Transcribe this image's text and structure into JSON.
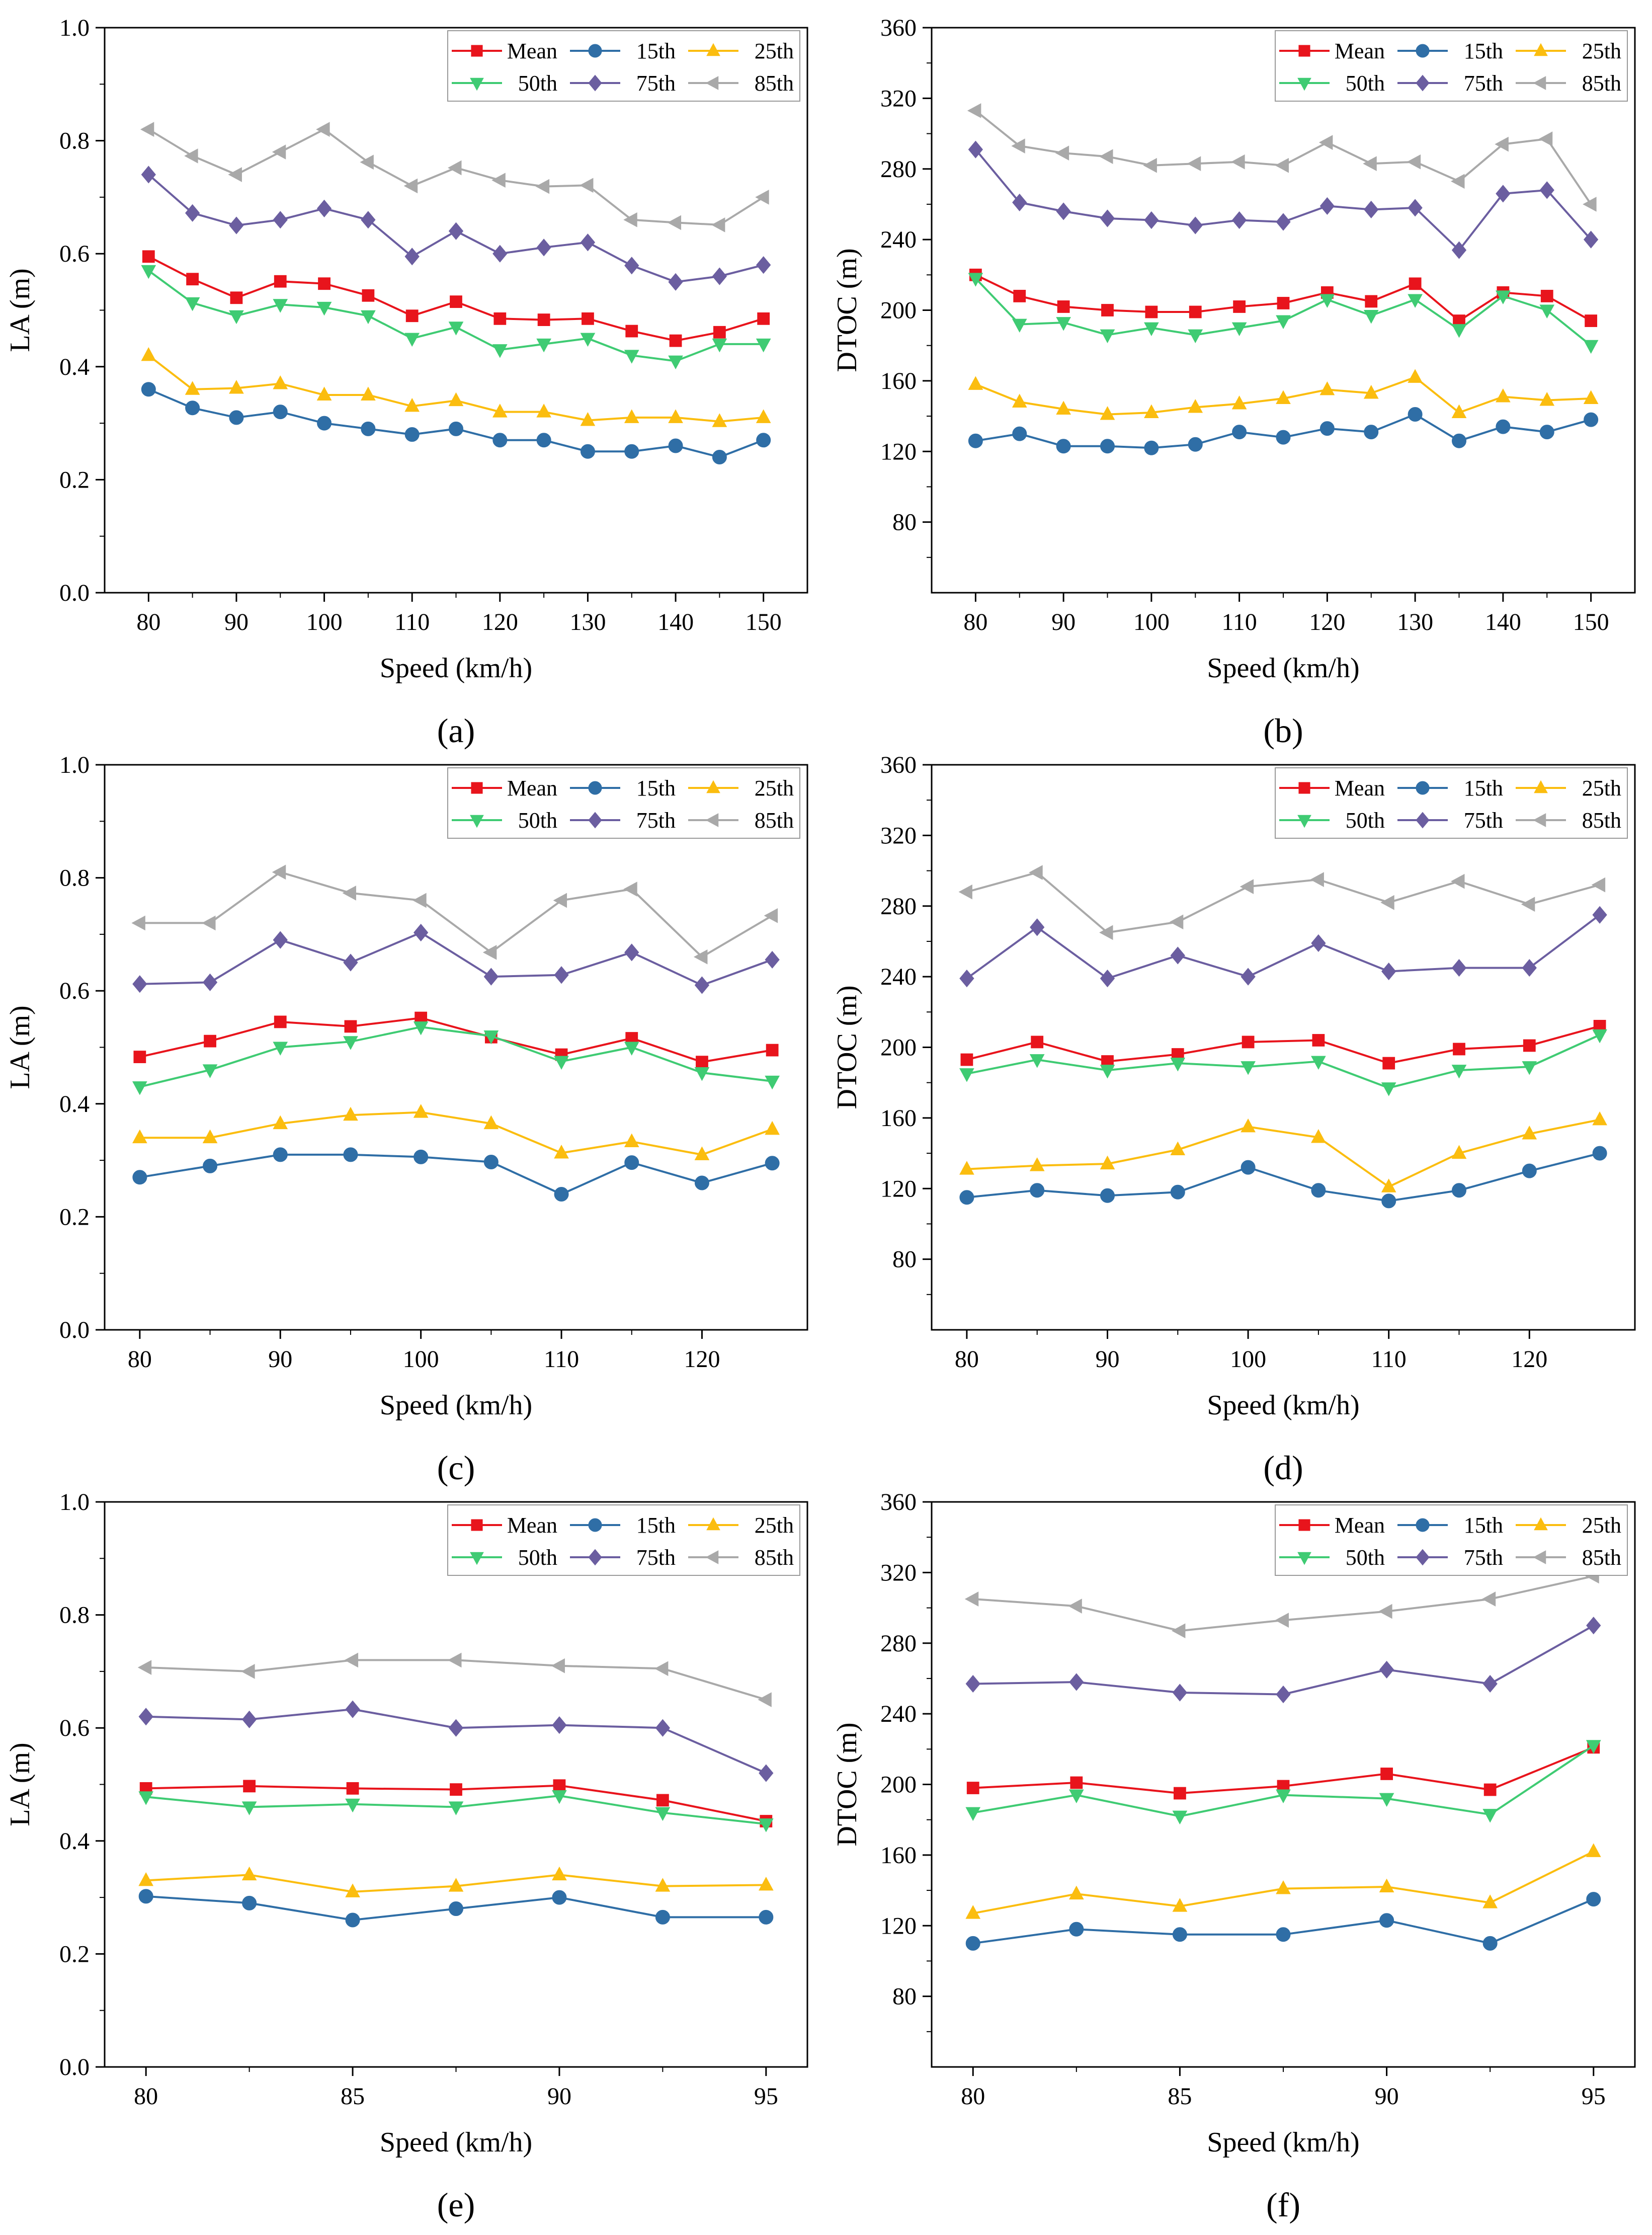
{
  "series_style": {
    "Mean": {
      "color": "#e8141c",
      "marker": "square"
    },
    "15th": {
      "color": "#2f6ea6",
      "marker": "circle"
    },
    "25th": {
      "color": "#fbbd0f",
      "marker": "triangle-up"
    },
    "50th": {
      "color": "#3fcb73",
      "marker": "triangle-down"
    },
    "75th": {
      "color": "#6b5ea0",
      "marker": "diamond"
    },
    "85th": {
      "color": "#a9a9a9",
      "marker": "triangle-left"
    }
  },
  "chart_data": [
    {
      "panel": "a",
      "panel_label": "(a)",
      "type": "line",
      "xlabel": "Speed (km/h)",
      "ylabel": "LA (m)",
      "xlim": [
        75,
        155
      ],
      "ylim": [
        0.0,
        1.0
      ],
      "xticks": [
        80,
        90,
        100,
        110,
        120,
        130,
        140,
        150
      ],
      "xtick_labels": [
        "80",
        "90",
        "100",
        "110",
        "120",
        "130",
        "140",
        "150"
      ],
      "yticks": [
        0.0,
        0.2,
        0.4,
        0.6,
        0.8,
        1.0
      ],
      "ytick_labels": [
        "0.0",
        "0.2",
        "0.4",
        "0.6",
        "0.8",
        "1.0"
      ],
      "x": [
        80,
        85,
        90,
        95,
        100,
        105,
        110,
        115,
        120,
        125,
        130,
        135,
        140,
        145,
        150
      ],
      "series": [
        {
          "name": "Mean",
          "values": [
            0.595,
            0.555,
            0.522,
            0.551,
            0.547,
            0.526,
            0.49,
            0.515,
            0.485,
            0.483,
            0.485,
            0.463,
            0.446,
            0.461,
            0.485
          ]
        },
        {
          "name": "15th",
          "values": [
            0.36,
            0.327,
            0.31,
            0.32,
            0.3,
            0.29,
            0.28,
            0.29,
            0.27,
            0.27,
            0.25,
            0.25,
            0.26,
            0.24,
            0.27
          ]
        },
        {
          "name": "25th",
          "values": [
            0.42,
            0.36,
            0.362,
            0.37,
            0.35,
            0.35,
            0.33,
            0.34,
            0.32,
            0.32,
            0.305,
            0.31,
            0.31,
            0.303,
            0.31
          ]
        },
        {
          "name": "50th",
          "values": [
            0.57,
            0.513,
            0.49,
            0.51,
            0.505,
            0.49,
            0.45,
            0.47,
            0.43,
            0.44,
            0.45,
            0.42,
            0.41,
            0.44,
            0.44
          ]
        },
        {
          "name": "75th",
          "values": [
            0.74,
            0.672,
            0.65,
            0.66,
            0.68,
            0.66,
            0.595,
            0.64,
            0.6,
            0.611,
            0.62,
            0.579,
            0.55,
            0.56,
            0.58
          ]
        },
        {
          "name": "85th",
          "values": [
            0.82,
            0.773,
            0.74,
            0.78,
            0.82,
            0.762,
            0.72,
            0.752,
            0.73,
            0.719,
            0.721,
            0.66,
            0.655,
            0.651,
            0.7
          ]
        }
      ]
    },
    {
      "panel": "b",
      "panel_label": "(b)",
      "type": "line",
      "xlabel": "Speed (km/h)",
      "ylabel": "DTOC (m)",
      "xlim": [
        75,
        155
      ],
      "ylim": [
        40,
        360
      ],
      "xticks": [
        80,
        90,
        100,
        110,
        120,
        130,
        140,
        150
      ],
      "xtick_labels": [
        "80",
        "90",
        "100",
        "110",
        "120",
        "130",
        "140",
        "150"
      ],
      "yticks": [
        80,
        120,
        160,
        200,
        240,
        280,
        320,
        360
      ],
      "ytick_labels": [
        "80",
        "120",
        "160",
        "200",
        "240",
        "280",
        "320",
        "360"
      ],
      "x": [
        80,
        85,
        90,
        95,
        100,
        105,
        110,
        115,
        120,
        125,
        130,
        135,
        140,
        145,
        150
      ],
      "series": [
        {
          "name": "Mean",
          "values": [
            220,
            208,
            202,
            200,
            199,
            199,
            202,
            204,
            210,
            205,
            215,
            194,
            210,
            208,
            194
          ]
        },
        {
          "name": "15th",
          "values": [
            126,
            130,
            123,
            123,
            122,
            124,
            131,
            128,
            133,
            131,
            141,
            126,
            134,
            131,
            138
          ]
        },
        {
          "name": "25th",
          "values": [
            158,
            148,
            144,
            141,
            142,
            145,
            147,
            150,
            155,
            153,
            162,
            142,
            151,
            149,
            150
          ]
        },
        {
          "name": "50th",
          "values": [
            218,
            192,
            193,
            186,
            190,
            186,
            190,
            194,
            206,
            197,
            206,
            189,
            208,
            200,
            180
          ]
        },
        {
          "name": "75th",
          "values": [
            291,
            261,
            256,
            252,
            251,
            248,
            251,
            250,
            259,
            257,
            258,
            234,
            266,
            268,
            240
          ]
        },
        {
          "name": "85th",
          "values": [
            313,
            293,
            289,
            287,
            282,
            283,
            284,
            282,
            295,
            283,
            284,
            273,
            294,
            297,
            260
          ]
        }
      ]
    },
    {
      "panel": "c",
      "panel_label": "(c)",
      "type": "line",
      "xlabel": "Speed (km/h)",
      "ylabel": "LA (m)",
      "xlim": [
        77.5,
        127.5
      ],
      "ylim": [
        0.0,
        1.0
      ],
      "xticks": [
        80,
        90,
        100,
        110,
        120
      ],
      "xtick_labels": [
        "80",
        "90",
        "100",
        "110",
        "120"
      ],
      "yticks": [
        0.0,
        0.2,
        0.4,
        0.6,
        0.8,
        1.0
      ],
      "ytick_labels": [
        "0.0",
        "0.2",
        "0.4",
        "0.6",
        "0.8",
        "1.0"
      ],
      "x": [
        80,
        85,
        90,
        95,
        100,
        105,
        110,
        115,
        120,
        125
      ],
      "series": [
        {
          "name": "Mean",
          "values": [
            0.483,
            0.511,
            0.545,
            0.537,
            0.552,
            0.518,
            0.487,
            0.516,
            0.474,
            0.495
          ]
        },
        {
          "name": "15th",
          "values": [
            0.27,
            0.29,
            0.31,
            0.31,
            0.306,
            0.297,
            0.24,
            0.296,
            0.26,
            0.295
          ]
        },
        {
          "name": "25th",
          "values": [
            0.34,
            0.34,
            0.365,
            0.38,
            0.385,
            0.365,
            0.313,
            0.333,
            0.31,
            0.355
          ]
        },
        {
          "name": "50th",
          "values": [
            0.43,
            0.46,
            0.5,
            0.51,
            0.536,
            0.52,
            0.475,
            0.5,
            0.455,
            0.44
          ]
        },
        {
          "name": "75th",
          "values": [
            0.612,
            0.615,
            0.69,
            0.65,
            0.703,
            0.625,
            0.628,
            0.668,
            0.61,
            0.655
          ]
        },
        {
          "name": "85th",
          "values": [
            0.72,
            0.72,
            0.81,
            0.773,
            0.76,
            0.668,
            0.76,
            0.78,
            0.66,
            0.733
          ]
        }
      ]
    },
    {
      "panel": "d",
      "panel_label": "(d)",
      "type": "line",
      "xlabel": "Speed (km/h)",
      "ylabel": "DTOC (m)",
      "xlim": [
        77.5,
        127.5
      ],
      "ylim": [
        40,
        360
      ],
      "xticks": [
        80,
        90,
        100,
        110,
        120
      ],
      "xtick_labels": [
        "80",
        "90",
        "100",
        "110",
        "120"
      ],
      "yticks": [
        80,
        120,
        160,
        200,
        240,
        280,
        320,
        360
      ],
      "ytick_labels": [
        "80",
        "120",
        "160",
        "200",
        "240",
        "280",
        "320",
        "360"
      ],
      "x": [
        80,
        85,
        90,
        95,
        100,
        105,
        110,
        115,
        120,
        125
      ],
      "series": [
        {
          "name": "Mean",
          "values": [
            193,
            203,
            192,
            196,
            203,
            204,
            191,
            199,
            201,
            212
          ]
        },
        {
          "name": "15th",
          "values": [
            115,
            119,
            116,
            118,
            132,
            119,
            113,
            119,
            130,
            140
          ]
        },
        {
          "name": "25th",
          "values": [
            131,
            133,
            134,
            142,
            155,
            149,
            121,
            140,
            151,
            159
          ]
        },
        {
          "name": "50th",
          "values": [
            185,
            193,
            187,
            191,
            189,
            192,
            177,
            187,
            189,
            207
          ]
        },
        {
          "name": "75th",
          "values": [
            239,
            268,
            239,
            252,
            240,
            259,
            243,
            245,
            245,
            275
          ]
        },
        {
          "name": "85th",
          "values": [
            288,
            299,
            265,
            271,
            291,
            295,
            282,
            294,
            281,
            292
          ]
        }
      ]
    },
    {
      "panel": "e",
      "panel_label": "(e)",
      "type": "line",
      "xlabel": "Speed (km/h)",
      "ylabel": "LA (m)",
      "xlim": [
        79,
        96
      ],
      "ylim": [
        0.0,
        1.0
      ],
      "xticks": [
        80,
        85,
        90,
        95
      ],
      "xtick_labels": [
        "80",
        "85",
        "90",
        "95"
      ],
      "yticks": [
        0.0,
        0.2,
        0.4,
        0.6,
        0.8,
        1.0
      ],
      "ytick_labels": [
        "0.0",
        "0.2",
        "0.4",
        "0.6",
        "0.8",
        "1.0"
      ],
      "x": [
        80,
        82.5,
        85,
        87.5,
        90,
        92.5,
        95
      ],
      "series": [
        {
          "name": "Mean",
          "values": [
            0.493,
            0.497,
            0.493,
            0.491,
            0.498,
            0.472,
            0.435
          ]
        },
        {
          "name": "15th",
          "values": [
            0.302,
            0.29,
            0.26,
            0.28,
            0.3,
            0.265,
            0.265
          ]
        },
        {
          "name": "25th",
          "values": [
            0.33,
            0.34,
            0.31,
            0.32,
            0.34,
            0.32,
            0.322
          ]
        },
        {
          "name": "50th",
          "values": [
            0.478,
            0.46,
            0.465,
            0.46,
            0.48,
            0.45,
            0.43
          ]
        },
        {
          "name": "75th",
          "values": [
            0.62,
            0.615,
            0.633,
            0.6,
            0.605,
            0.6,
            0.52
          ]
        },
        {
          "name": "85th",
          "values": [
            0.707,
            0.7,
            0.72,
            0.72,
            0.71,
            0.705,
            0.65
          ]
        }
      ]
    },
    {
      "panel": "f",
      "panel_label": "(f)",
      "type": "line",
      "xlabel": "Speed (km/h)",
      "ylabel": "DTOC (m)",
      "xlim": [
        79,
        96
      ],
      "ylim": [
        40,
        360
      ],
      "xticks": [
        80,
        85,
        90,
        95
      ],
      "xtick_labels": [
        "80",
        "85",
        "90",
        "95"
      ],
      "yticks": [
        80,
        120,
        160,
        200,
        240,
        280,
        320,
        360
      ],
      "ytick_labels": [
        "80",
        "120",
        "160",
        "200",
        "240",
        "280",
        "320",
        "360"
      ],
      "x": [
        80,
        82.5,
        85,
        87.5,
        90,
        92.5,
        95
      ],
      "series": [
        {
          "name": "Mean",
          "values": [
            198,
            201,
            195,
            199,
            206,
            197,
            221
          ]
        },
        {
          "name": "15th",
          "values": [
            110,
            118,
            115,
            115,
            123,
            110,
            135
          ]
        },
        {
          "name": "25th",
          "values": [
            127,
            138,
            131,
            141,
            142,
            133,
            162
          ]
        },
        {
          "name": "50th",
          "values": [
            184,
            194,
            182,
            194,
            192,
            183,
            222
          ]
        },
        {
          "name": "75th",
          "values": [
            257,
            258,
            252,
            251,
            265,
            257,
            290
          ]
        },
        {
          "name": "85th",
          "values": [
            305,
            301,
            287,
            293,
            298,
            305,
            318
          ]
        }
      ]
    }
  ]
}
